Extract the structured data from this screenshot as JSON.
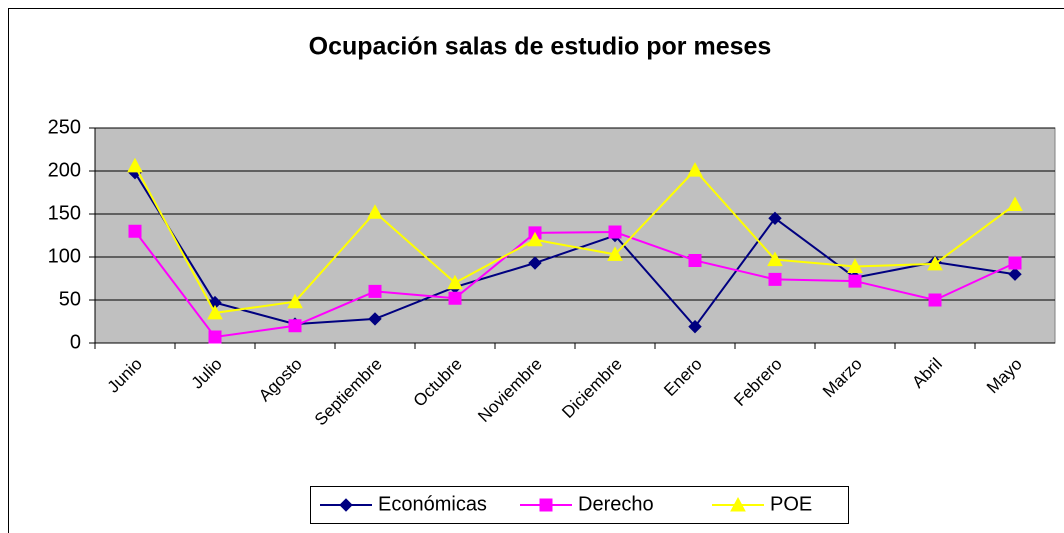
{
  "chart_data": {
    "type": "line",
    "title": "Ocupación salas de estudio por meses",
    "categories": [
      "Junio",
      "Julio",
      "Agosto",
      "Septiembre",
      "Octubre",
      "Noviembre",
      "Diciembre",
      "Enero",
      "Febrero",
      "Marzo",
      "Abril",
      "Mayo"
    ],
    "series": [
      {
        "name": "Económicas",
        "color": "#000080",
        "marker": "diamond",
        "values": [
          198,
          47,
          22,
          28,
          65,
          93,
          125,
          19,
          145,
          76,
          94,
          80
        ]
      },
      {
        "name": "Derecho",
        "color": "#ff00ff",
        "marker": "square",
        "values": [
          130,
          7,
          20,
          60,
          52,
          128,
          129,
          96,
          74,
          72,
          50,
          93
        ]
      },
      {
        "name": "POE",
        "color": "#ffff00",
        "marker": "triangle",
        "values": [
          206,
          35,
          48,
          152,
          70,
          120,
          103,
          201,
          97,
          89,
          92,
          161
        ]
      }
    ],
    "ylim": [
      0,
      250
    ],
    "yticks": [
      0,
      50,
      100,
      150,
      200,
      250
    ],
    "grid": true,
    "legend": "bottom"
  }
}
